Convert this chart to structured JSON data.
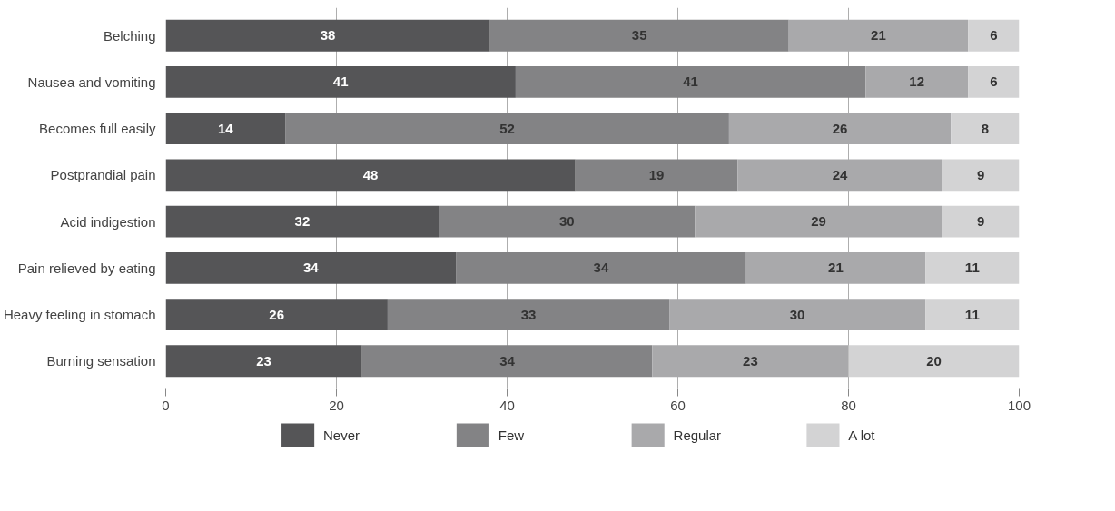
{
  "chart_data": {
    "type": "bar",
    "orientation": "horizontal",
    "stacked": true,
    "data_labels": true,
    "categories": [
      "Belching",
      "Nausea and vomiting",
      "Becomes full easily",
      "Postprandial pain",
      "Acid indigestion",
      "Pain relieved by eating",
      "Heavy feeling in stomach",
      "Burning sensation"
    ],
    "series": [
      {
        "name": "Never",
        "color": "#555557",
        "values": [
          38,
          41,
          14,
          48,
          32,
          34,
          26,
          23
        ]
      },
      {
        "name": "Few",
        "color": "#838385",
        "values": [
          35,
          41,
          52,
          19,
          30,
          34,
          33,
          34
        ]
      },
      {
        "name": "Regular",
        "color": "#a9a9ab",
        "values": [
          21,
          12,
          26,
          24,
          29,
          21,
          30,
          23
        ]
      },
      {
        "name": "A lot",
        "color": "#d3d3d4",
        "values": [
          6,
          6,
          8,
          9,
          9,
          11,
          11,
          20
        ]
      }
    ],
    "xlim": [
      0,
      100
    ],
    "xticks": [
      0,
      20,
      40,
      60,
      80,
      100
    ],
    "grid": "x",
    "legend": "bottom"
  }
}
